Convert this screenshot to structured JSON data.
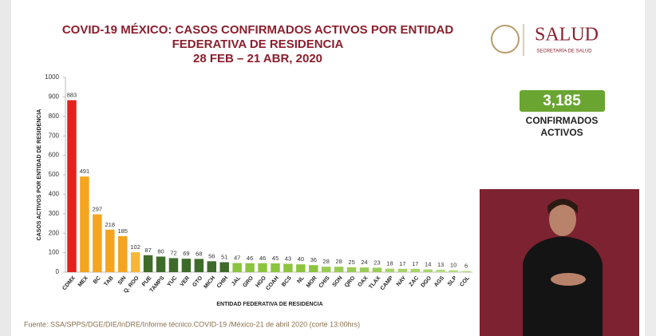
{
  "chart_data": {
    "type": "bar",
    "title": [
      "COVID-19 MÉXICO: CASOS CONFIRMADOS ACTIVOS POR ENTIDAD",
      "FEDERATIVA DE RESIDENCIA"
    ],
    "subtitle": "28 FEB – 21 ABR, 2020",
    "ylabel": "CASOS ACTIVOS POR ENTIDAD DE RESIDENCIA",
    "xlabel": "ENTIDAD FEDERATIVA DE RESIDENCIA",
    "categories": [
      "CDMX",
      "MEX",
      "BC",
      "TAB",
      "SIN",
      "Q. ROO",
      "PUE",
      "TAMPS",
      "YUC",
      "VER",
      "GTO",
      "MICH",
      "CHIH",
      "JAL",
      "GRO",
      "HGO",
      "COAH",
      "BCS",
      "NL",
      "MOR",
      "CHIS",
      "SON",
      "QRO",
      "OAX",
      "TLAX",
      "CAMP",
      "NAY",
      "ZAC",
      "DGO",
      "AGS",
      "SLP",
      "COL"
    ],
    "values": [
      883,
      491,
      297,
      218,
      185,
      102,
      87,
      80,
      72,
      69,
      68,
      56,
      51,
      47,
      46,
      46,
      45,
      43,
      40,
      36,
      28,
      28,
      25,
      24,
      23,
      18,
      17,
      17,
      14,
      13,
      10,
      6
    ],
    "colors": [
      "#e3221b",
      "#f5a41f",
      "#f5a41f",
      "#f5a41f",
      "#f5a41f",
      "#f7b638",
      "#3f6b2a",
      "#3f6b2a",
      "#3f6b2a",
      "#3f6b2a",
      "#3f6b2a",
      "#3f6b2a",
      "#3f6b2a",
      "#8cc43f",
      "#8cc43f",
      "#8cc43f",
      "#8cc43f",
      "#8cc43f",
      "#8cc43f",
      "#8cc43f",
      "#9acc55",
      "#9acc55",
      "#9acc55",
      "#9acc55",
      "#9acc55",
      "#a8d46b",
      "#a8d46b",
      "#a8d46b",
      "#a8d46b",
      "#b5db80",
      "#b5db80",
      "#b5db80"
    ],
    "ylim": [
      0,
      1000
    ],
    "yticks": [
      0,
      100,
      200,
      300,
      400,
      500,
      600,
      700,
      800,
      900,
      1000
    ],
    "grid": false,
    "source": "Fuente: SSA/SPPS/DGE/DIE/InDRE/Informe técnico.COVID-19 /México-21 de abril 2020 (corte 13:00hrs)"
  },
  "summary": {
    "total": "3,185",
    "label": [
      "CONFIRMADOS",
      "ACTIVOS"
    ]
  },
  "logo": {
    "name": "SALUD",
    "subtitle": "SECRETARÍA DE SALUD"
  }
}
